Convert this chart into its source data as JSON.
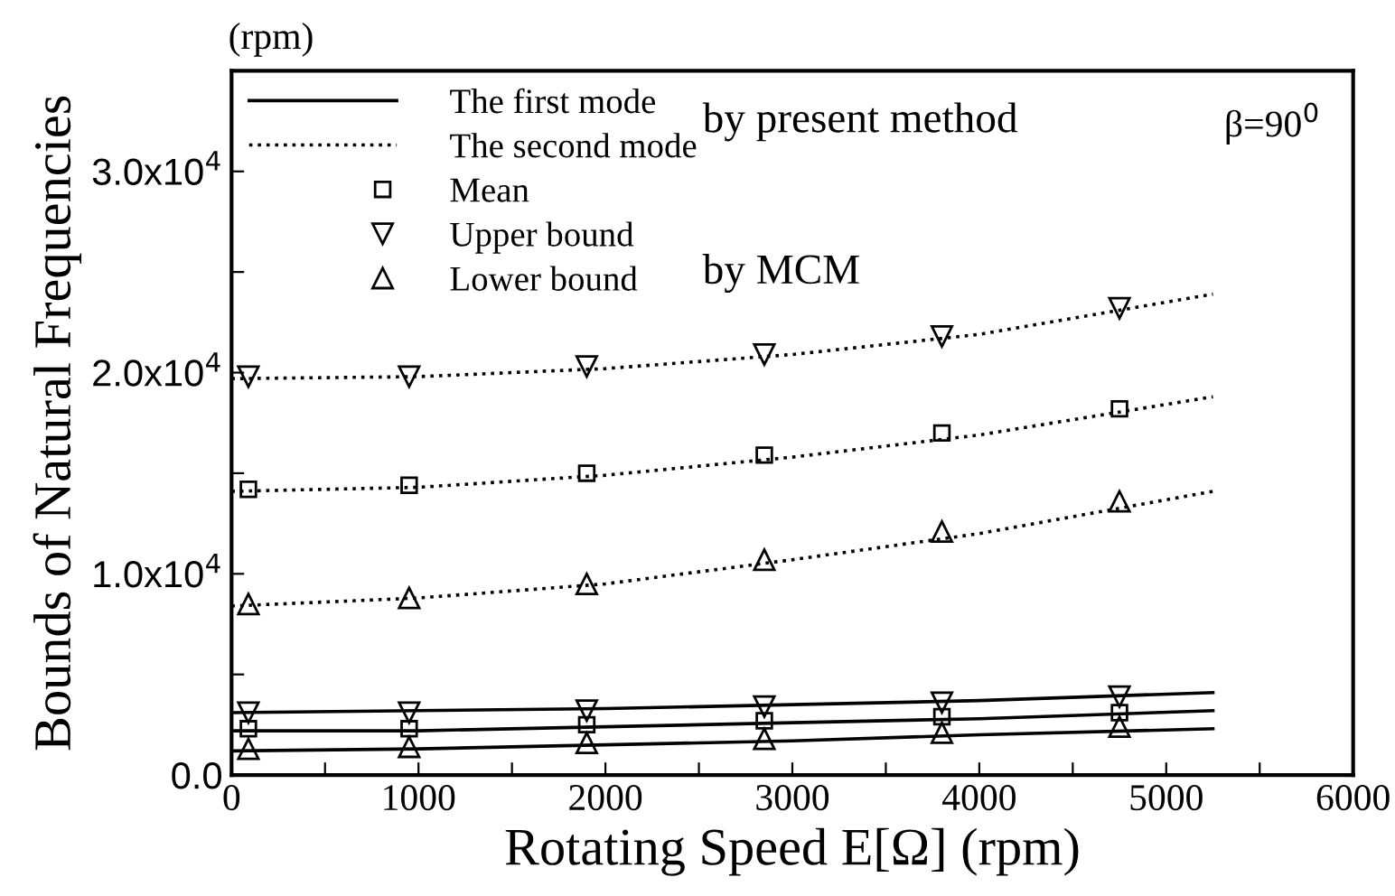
{
  "chart_data": {
    "type": "line",
    "xlabel": "Rotating Speed E[Ω] (rpm)",
    "ylabel": "Bounds of Natural Frequencies",
    "annotations": [
      "(rpm)",
      "by present method",
      "by MCM",
      "β=90$^{0}$"
    ],
    "xlim": [
      0,
      6000
    ],
    "ylim": [
      0,
      35000
    ],
    "xticks": [
      0,
      {
        "value": 500,
        "label": null
      },
      1000,
      {
        "value": 1500,
        "label": null
      },
      2000,
      {
        "value": 2500,
        "label": null
      },
      3000,
      {
        "value": 3500,
        "label": null
      },
      4000,
      {
        "value": 4500,
        "label": null
      },
      5000,
      {
        "value": 5500,
        "label": null
      },
      6000
    ],
    "yticks": [
      {
        "value": 0,
        "label": "0.0"
      },
      {
        "value": 5000,
        "label": null
      },
      {
        "value": 10000,
        "label": "1.0x10$^{4}$"
      },
      {
        "value": 15000,
        "label": null
      },
      {
        "value": 20000,
        "label": "2.0x10$^{4}$"
      },
      {
        "value": 25000,
        "label": null
      },
      {
        "value": 30000,
        "label": "3.0x10$^{4}$"
      }
    ],
    "grid": false,
    "legend": "top left",
    "series": [
      {
        "name": "The first mode",
        "line_style": "solid",
        "marker": "none",
        "color": "#000000",
        "x": [
          0,
          1000,
          2000,
          3000,
          4000,
          5250
        ],
        "values": [
          3100,
          3200,
          3300,
          3500,
          3700,
          4100
        ]
      },
      {
        "line_style": "solid",
        "marker": "none",
        "color": "#000000",
        "x": [
          0,
          1000,
          2000,
          3000,
          4000,
          5250
        ],
        "values": [
          2200,
          2200,
          2400,
          2600,
          2800,
          3200
        ]
      },
      {
        "line_style": "solid",
        "marker": "none",
        "color": "#000000",
        "x": [
          0,
          1000,
          2000,
          3000,
          4000,
          5250
        ],
        "values": [
          1200,
          1300,
          1500,
          1700,
          2000,
          2300
        ]
      },
      {
        "name": "The second mode",
        "line_style": "dotted",
        "marker": "none",
        "color": "#000000",
        "x": [
          0,
          1000,
          2000,
          3000,
          4000,
          5250
        ],
        "values": [
          19700,
          19800,
          20200,
          20900,
          21900,
          23900
        ]
      },
      {
        "line_style": "dotted",
        "marker": "none",
        "color": "#000000",
        "x": [
          0,
          1000,
          2000,
          3000,
          4000,
          5250
        ],
        "values": [
          14100,
          14300,
          14900,
          15800,
          16900,
          18800
        ]
      },
      {
        "line_style": "dotted",
        "marker": "none",
        "color": "#000000",
        "x": [
          0,
          1000,
          2000,
          3000,
          4000,
          5250
        ],
        "values": [
          8400,
          8800,
          9500,
          10700,
          12000,
          14100
        ]
      },
      {
        "name": "Mean",
        "type": "scatter",
        "marker": "square",
        "color": "#000000",
        "x": [
          90,
          950,
          1900,
          2850,
          3800,
          4750
        ],
        "values": [
          14200,
          14400,
          15000,
          15900,
          17000,
          18200
        ]
      },
      {
        "type": "scatter",
        "marker": "square",
        "color": "#000000",
        "x": [
          90,
          950,
          1900,
          2850,
          3800,
          4750
        ],
        "values": [
          2300,
          2300,
          2500,
          2700,
          2900,
          3100
        ]
      },
      {
        "name": "Upper bound",
        "type": "scatter",
        "marker": "triangle_down",
        "color": "#000000",
        "x": [
          90,
          950,
          1900,
          2850,
          3800,
          4750
        ],
        "values": [
          19800,
          19800,
          20300,
          20900,
          21800,
          23200
        ]
      },
      {
        "type": "scatter",
        "marker": "triangle_down",
        "color": "#000000",
        "x": [
          90,
          950,
          1900,
          2850,
          3800,
          4750
        ],
        "values": [
          3100,
          3100,
          3200,
          3400,
          3600,
          3900
        ]
      },
      {
        "name": "Lower bound",
        "type": "scatter",
        "marker": "triangle",
        "color": "#000000",
        "x": [
          90,
          950,
          1900,
          2850,
          3800,
          4750
        ],
        "values": [
          8500,
          8800,
          9500,
          10700,
          12100,
          13600
        ]
      },
      {
        "type": "scatter",
        "marker": "triangle",
        "color": "#000000",
        "x": [
          90,
          950,
          1900,
          2850,
          3800,
          4750
        ],
        "values": [
          1300,
          1400,
          1600,
          1800,
          2100,
          2400
        ]
      }
    ]
  }
}
